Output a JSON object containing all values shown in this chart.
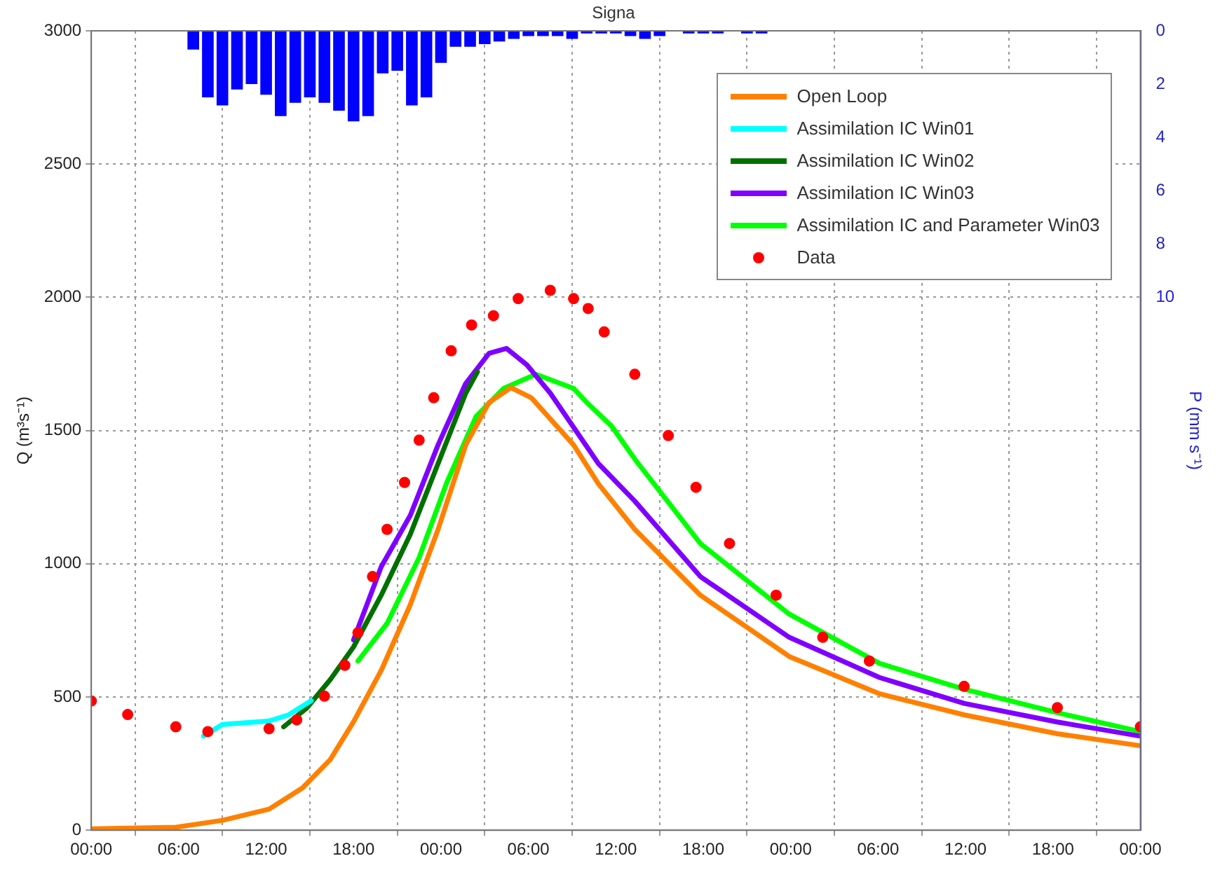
{
  "chart_data": {
    "type": "line",
    "title": "Signa",
    "ylabel": "Q (m³s⁻¹)",
    "y2label": "P (mm s⁻¹)",
    "xlim": [
      "--01-01T00:00",
      "--01-04T00:00"
    ],
    "xticks": [
      {
        "value": "--01-01T00:00",
        "label": "00:00"
      },
      {
        "value": "--01-01T06:00",
        "label": "06:00"
      },
      {
        "value": "--01-01T12:00",
        "label": "12:00"
      },
      {
        "value": "--01-01T18:00",
        "label": "18:00"
      },
      {
        "value": "--01-02T00:00",
        "label": "00:00"
      },
      {
        "value": "--01-02T06:00",
        "label": "06:00"
      },
      {
        "value": "--01-02T12:00",
        "label": "12:00"
      },
      {
        "value": "--01-02T18:00",
        "label": "18:00"
      },
      {
        "value": "--01-03T00:00",
        "label": "00:00"
      },
      {
        "value": "--01-03T06:00",
        "label": "06:00"
      },
      {
        "value": "--01-03T12:00",
        "label": "12:00"
      },
      {
        "value": "--01-03T18:00",
        "label": "18:00"
      },
      {
        "value": "--01-04T00:00",
        "label": "00:00"
      }
    ],
    "ylim": [
      0,
      3000
    ],
    "yticks": [
      0,
      500,
      1000,
      1500,
      2000,
      2500,
      3000
    ],
    "y2lim": [
      30,
      0
    ],
    "y2ticks": [
      0,
      2,
      4,
      6,
      8,
      10
    ],
    "grid": true,
    "legend": "top right",
    "line_style": "solid",
    "series": [
      {
        "type": "bar",
        "axis": "y2",
        "color": "#0000ff",
        "x": [
          "--01-01T07:00",
          "--01-01T08:00",
          "--01-01T09:00",
          "--01-01T10:00",
          "--01-01T11:00",
          "--01-01T12:00",
          "--01-01T13:00",
          "--01-01T14:00",
          "--01-01T15:00",
          "--01-01T16:00",
          "--01-01T17:00",
          "--01-01T18:00",
          "--01-01T19:00",
          "--01-01T20:00",
          "--01-01T21:00",
          "--01-01T22:00",
          "--01-01T23:00",
          "--01-02T00:00",
          "--01-02T01:00",
          "--01-02T02:00",
          "--01-02T03:00",
          "--01-02T04:00",
          "--01-02T05:00",
          "--01-02T06:00",
          "--01-02T07:00",
          "--01-02T08:00",
          "--01-02T09:00",
          "--01-02T10:00",
          "--01-02T11:00",
          "--01-02T12:00",
          "--01-02T13:00",
          "--01-02T14:00",
          "--01-02T15:00",
          "--01-02T16:00",
          "--01-02T17:00",
          "--01-02T18:00",
          "--01-02T19:00",
          "--01-02T20:00",
          "--01-02T21:00",
          "--01-02T22:00"
        ],
        "values": [
          0.7,
          2.5,
          2.8,
          2.2,
          2.0,
          2.4,
          3.2,
          2.7,
          2.5,
          2.7,
          3.0,
          3.4,
          3.2,
          1.6,
          1.5,
          2.8,
          2.5,
          1.2,
          0.6,
          0.6,
          0.5,
          0.4,
          0.3,
          0.2,
          0.2,
          0.2,
          0.3,
          0.1,
          0.1,
          0.1,
          0.2,
          0.3,
          0.2,
          0,
          0.1,
          0.1,
          0.1,
          0,
          0.1,
          0.1
        ]
      },
      {
        "name": "Open Loop",
        "color": "#ff8000",
        "x": [
          "--01-01T00:00",
          "--01-01T05:48",
          "--01-01T09:00",
          "--01-01T12:12",
          "--01-01T14:30",
          "--01-01T16:24",
          "--01-01T18:00",
          "--01-01T19:54",
          "--01-01T21:54",
          "--01-01T23:48",
          "--01-02T01:42",
          "--01-02T03:18",
          "--01-02T04:48",
          "--01-02T06:12",
          "--01-02T09:06",
          "--01-02T10:48",
          "--01-02T13:18",
          "--01-02T17:48",
          "--01-02T23:54",
          "--01-03T06:06",
          "--01-03T11:54",
          "--01-03T18:18",
          "--01-04T00:00"
        ],
        "values": [
          5,
          11,
          37,
          79,
          159,
          265,
          407,
          600,
          847,
          1129,
          1446,
          1605,
          1661,
          1623,
          1446,
          1300,
          1129,
          882,
          652,
          512,
          433,
          362,
          317
        ]
      },
      {
        "name": "Assimilation IC Win01",
        "color": "#00ffff",
        "x": [
          "--01-01T07:42",
          "--01-01T09:00",
          "--01-01T12:12",
          "--01-01T13:30",
          "--01-01T15:06"
        ],
        "values": [
          353,
          397,
          410,
          432,
          486
        ]
      },
      {
        "name": "Assimilation IC Win02",
        "color": "#007000",
        "x": [
          "--01-01T13:12",
          "--01-01T14:48",
          "--01-01T16:24",
          "--01-01T18:00",
          "--01-01T19:54",
          "--01-01T21:54",
          "--01-01T23:48",
          "--01-02T01:42",
          "--01-02T02:30"
        ],
        "values": [
          388,
          459,
          565,
          688,
          882,
          1111,
          1376,
          1640,
          1720
        ]
      },
      {
        "name": "Assimilation IC Win03",
        "color": "#7f00ff",
        "x": [
          "--01-01T18:00",
          "--01-01T19:54",
          "--01-01T21:54",
          "--01-01T23:48",
          "--01-02T01:42",
          "--01-02T03:18",
          "--01-02T04:30",
          "--01-02T05:54",
          "--01-02T07:30",
          "--01-02T10:48",
          "--01-02T13:18",
          "--01-02T17:48",
          "--01-02T23:54",
          "--01-03T06:06",
          "--01-03T11:54",
          "--01-03T18:18",
          "--01-04T00:00"
        ],
        "values": [
          714,
          989,
          1182,
          1446,
          1677,
          1790,
          1808,
          1746,
          1640,
          1376,
          1235,
          952,
          724,
          573,
          476,
          406,
          353
        ]
      },
      {
        "name": "Assimilation IC and Parameter Win03",
        "color": "#00ff00",
        "x": [
          "--01-01T18:18",
          "--01-01T20:18",
          "--01-01T22:30",
          "--01-02T00:24",
          "--01-02T02:24",
          "--01-02T04:18",
          "--01-02T06:30",
          "--01-02T09:06",
          "--01-02T10:06",
          "--01-02T11:42",
          "--01-02T13:18",
          "--01-02T17:48",
          "--01-02T23:54",
          "--01-03T06:06",
          "--01-03T11:54",
          "--01-03T18:18",
          "--01-04T00:00"
        ],
        "values": [
          635,
          776,
          1023,
          1305,
          1552,
          1658,
          1711,
          1658,
          1600,
          1517,
          1393,
          1076,
          811,
          626,
          529,
          441,
          370
        ]
      },
      {
        "name": "Data",
        "type": "scatter",
        "marker": "circle",
        "color": "#ff0000",
        "x": [
          "--01-01T00:00",
          "--01-01T02:30",
          "--01-01T05:48",
          "--01-01T08:00",
          "--01-01T12:12",
          "--01-01T14:06",
          "--01-01T16:00",
          "--01-01T17:24",
          "--01-01T18:18",
          "--01-01T19:18",
          "--01-01T20:18",
          "--01-01T21:30",
          "--01-01T22:30",
          "--01-01T23:30",
          "--01-02T00:42",
          "--01-02T02:06",
          "--01-02T03:36",
          "--01-02T05:18",
          "--01-02T07:30",
          "--01-02T09:06",
          "--01-02T10:06",
          "--01-02T11:12",
          "--01-02T13:18",
          "--01-02T15:36",
          "--01-02T17:30",
          "--01-02T19:48",
          "--01-02T23:00",
          "--01-03T02:12",
          "--01-03T05:24",
          "--01-03T11:54",
          "--01-03T18:18",
          "--01-04T00:00"
        ],
        "values": [
          485,
          434,
          388,
          370,
          381,
          414,
          503,
          619,
          741,
          952,
          1129,
          1305,
          1464,
          1623,
          1799,
          1896,
          1931,
          1995,
          2026,
          1995,
          1958,
          1870,
          1711,
          1481,
          1287,
          1076,
          882,
          724,
          635,
          540,
          460,
          388
        ]
      }
    ]
  }
}
